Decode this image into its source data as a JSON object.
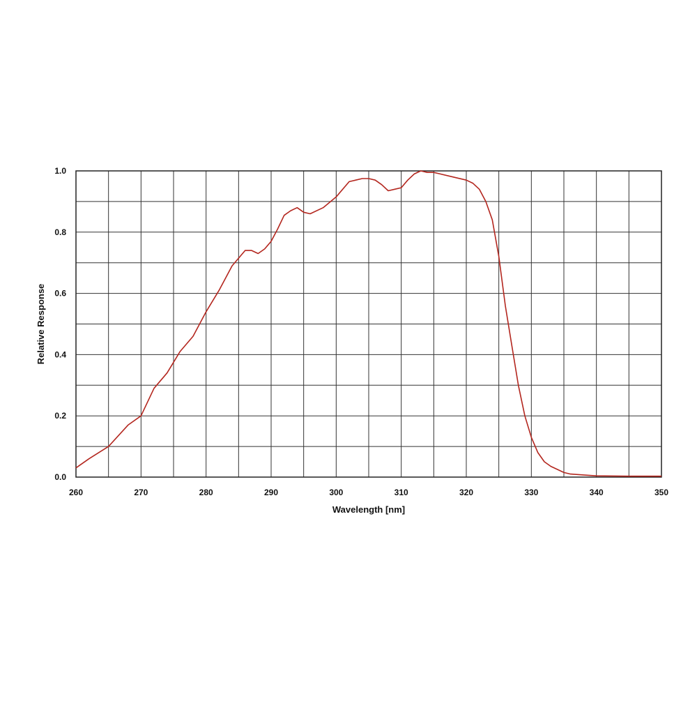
{
  "chart_data": {
    "type": "line",
    "title": "",
    "xlabel": "Wavelength [nm]",
    "ylabel": "Relative Response",
    "xlim": [
      260,
      350
    ],
    "ylim": [
      0,
      1.0
    ],
    "x_ticks": [
      260,
      270,
      280,
      290,
      300,
      310,
      320,
      330,
      340,
      350
    ],
    "x_tick_labels": [
      "260",
      "270",
      "280",
      "290",
      "300",
      "310",
      "320",
      "330",
      "340",
      "350"
    ],
    "y_ticks": [
      0,
      0.2,
      0.4,
      0.6,
      0.8,
      1.0
    ],
    "y_tick_labels": [
      "0.0",
      "0.2",
      "0.4",
      "0.6",
      "0.8",
      "1.0"
    ],
    "grid": true,
    "grid_x_step": 5,
    "grid_y_step": 0.1,
    "line_color": "#b3261e",
    "series": [
      {
        "x": [
          260,
          262,
          265,
          268,
          270,
          272,
          274,
          276,
          278,
          280,
          282,
          284,
          286,
          287,
          288,
          289,
          290,
          291,
          292,
          293,
          294,
          295,
          296,
          298,
          300,
          302,
          304,
          305,
          306,
          307,
          308,
          309,
          310,
          311,
          312,
          313,
          314,
          315,
          316,
          318,
          320,
          321,
          322,
          323,
          324,
          325,
          326,
          327,
          328,
          329,
          330,
          331,
          332,
          333,
          334,
          335,
          336,
          338,
          340,
          345,
          350
        ],
        "y": [
          0.03,
          0.06,
          0.1,
          0.17,
          0.2,
          0.29,
          0.34,
          0.41,
          0.46,
          0.54,
          0.61,
          0.69,
          0.74,
          0.74,
          0.73,
          0.745,
          0.77,
          0.81,
          0.855,
          0.87,
          0.88,
          0.865,
          0.86,
          0.88,
          0.915,
          0.965,
          0.975,
          0.975,
          0.97,
          0.955,
          0.935,
          0.94,
          0.945,
          0.97,
          0.99,
          1.0,
          0.995,
          0.995,
          0.99,
          0.98,
          0.97,
          0.96,
          0.94,
          0.9,
          0.84,
          0.72,
          0.56,
          0.43,
          0.3,
          0.2,
          0.13,
          0.08,
          0.05,
          0.035,
          0.025,
          0.015,
          0.01,
          0.007,
          0.004,
          0.003,
          0.003
        ]
      }
    ]
  }
}
